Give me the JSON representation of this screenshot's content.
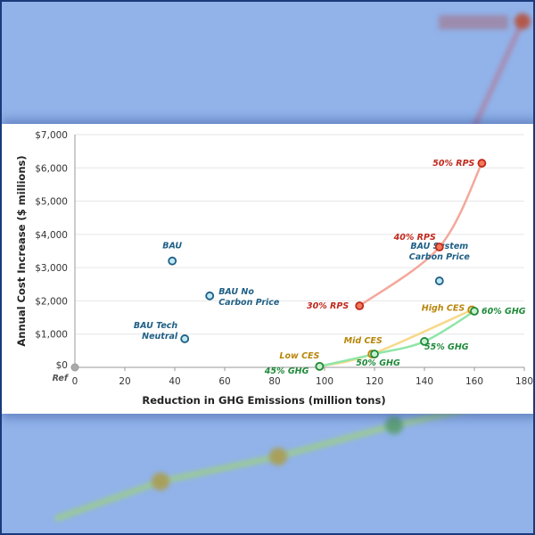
{
  "chart_data": {
    "type": "scatter",
    "xlabel": "Reduction in GHG Emissions (million tons)",
    "ylabel": "Annual Cost Increase ($ millions)",
    "xlim": [
      0,
      180
    ],
    "ylim": [
      0,
      7000
    ],
    "xticks": [
      "0",
      "20",
      "40",
      "60",
      "80",
      "100",
      "120",
      "140",
      "160",
      "180"
    ],
    "yticks": [
      "$0",
      "$1,000",
      "$2,000",
      "$3,000",
      "$4,000",
      "$5,000",
      "$6,000",
      "$7,000"
    ],
    "grid": "horizontal",
    "colors": {
      "bau": "#1f5f86",
      "rps": "#c0281c",
      "ces": "#b8860b",
      "ghg": "#1f8a3a",
      "ref": "#999999"
    },
    "reference": {
      "label": "Ref",
      "x": 0,
      "y": 0
    },
    "series": [
      {
        "name": "BAU",
        "color_key": "bau",
        "line": false,
        "points": [
          {
            "label": "BAU",
            "x": 39,
            "y": 3200
          },
          {
            "label": "BAU No Carbon Price",
            "x": 54,
            "y": 2150
          },
          {
            "label": "BAU Tech Neutral",
            "x": 44,
            "y": 860
          },
          {
            "label": "BAU System Carbon Price",
            "x": 146,
            "y": 2600
          }
        ]
      },
      {
        "name": "RPS",
        "color_key": "rps",
        "line": true,
        "points": [
          {
            "label": "30% RPS",
            "x": 114,
            "y": 1850
          },
          {
            "label": "40% RPS",
            "x": 146,
            "y": 3620
          },
          {
            "label": "50% RPS",
            "x": 163,
            "y": 6140
          }
        ]
      },
      {
        "name": "CES",
        "color_key": "ces",
        "line": true,
        "points": [
          {
            "label": "Low CES",
            "x": 98,
            "y": 30
          },
          {
            "label": "Mid CES",
            "x": 119,
            "y": 400
          },
          {
            "label": "High CES",
            "x": 159,
            "y": 1730
          }
        ]
      },
      {
        "name": "GHG",
        "color_key": "ghg",
        "line": true,
        "points": [
          {
            "label": "45% GHG",
            "x": 98,
            "y": 30
          },
          {
            "label": "50% GHG",
            "x": 120,
            "y": 400
          },
          {
            "label": "55% GHG",
            "x": 140,
            "y": 780
          },
          {
            "label": "60% GHG",
            "x": 160,
            "y": 1690
          }
        ]
      }
    ]
  }
}
